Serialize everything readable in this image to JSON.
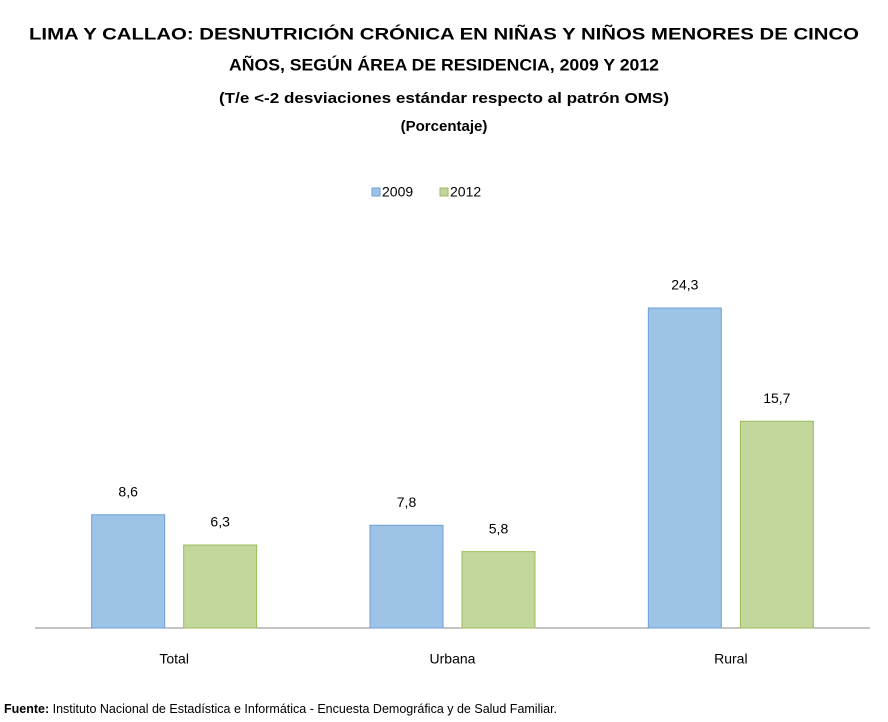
{
  "chart_data": {
    "type": "bar",
    "title_lines": [
      "LIMA Y CALLAO: DESNUTRICIÓN CRÓNICA EN NIÑAS Y NIÑOS MENORES DE CINCO",
      "AÑOS, SEGÚN ÁREA DE RESIDENCIA, 2009 Y 2012"
    ],
    "subtitle_lines": [
      "(T/e <-2 desviaciones estándar respecto al patrón OMS)",
      "(Porcentaje)"
    ],
    "categories": [
      "Total",
      "Urbana",
      "Rural"
    ],
    "series": [
      {
        "name": "2009",
        "color": "#9dc3e6",
        "values": [
          8.6,
          7.8,
          24.3
        ],
        "value_labels": [
          "8,6",
          "7,8",
          "24,3"
        ]
      },
      {
        "name": "2012",
        "color": "#c3d69b",
        "values": [
          6.3,
          5.8,
          15.7
        ],
        "value_labels": [
          "6,3",
          "5,8",
          "15,7"
        ]
      }
    ],
    "legend": "top",
    "source_label": "Fuente:",
    "source": "Instituto Nacional de Estadística e Informática - Encuesta Demográfica y de Salud Familiar."
  }
}
